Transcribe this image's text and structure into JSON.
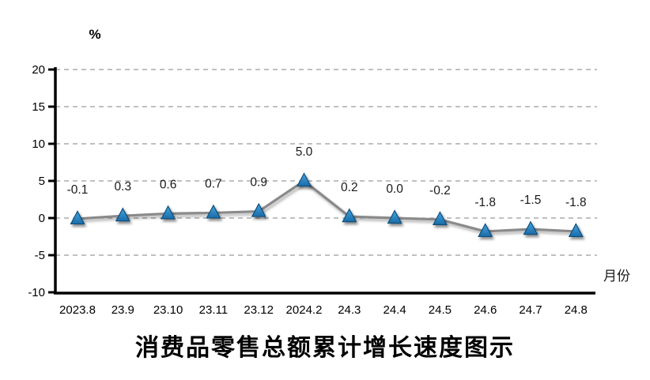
{
  "chart_data": {
    "type": "line",
    "title": "消费品零售总额累计增长速度图示",
    "y_axis_unit_label": "%",
    "x_axis_label": "月份",
    "categories": [
      "2023.8",
      "23.9",
      "23.10",
      "23.11",
      "23.12",
      "2024.2",
      "24.3",
      "24.4",
      "24.5",
      "24.6",
      "24.7",
      "24.8"
    ],
    "values": [
      -0.1,
      0.3,
      0.6,
      0.7,
      0.9,
      5.0,
      0.2,
      0.0,
      -0.2,
      -1.8,
      -1.5,
      -1.8
    ],
    "data_labels": [
      "-0.1",
      "0.3",
      "0.6",
      "0.7",
      "0.9",
      "5.0",
      "0.2",
      "0.0",
      "-0.2",
      "-1.8",
      "-1.5",
      "-1.8"
    ],
    "y_ticks": [
      20,
      15,
      10,
      5,
      0,
      -5,
      -10
    ],
    "ylim": [
      -10,
      20
    ],
    "grid": "horizontal-dashed",
    "legend": "none",
    "colors": {
      "line": "#8a8a8a",
      "marker_fill_top": "#45a5e0",
      "marker_fill_bottom": "#1a6ca8",
      "marker_stroke": "#0f4f7c",
      "grid": "#9a9a9a",
      "axis": "#000000",
      "label_text": "#1a1a1a"
    }
  }
}
